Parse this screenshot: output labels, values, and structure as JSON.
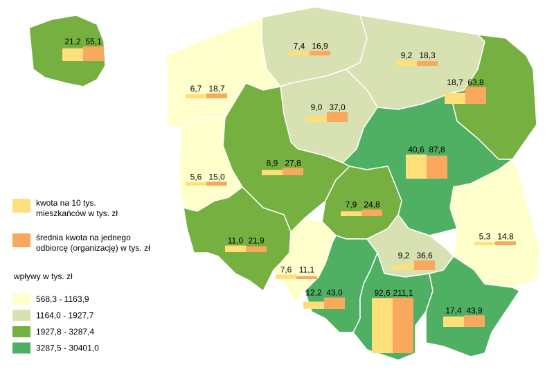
{
  "inset": {
    "values": [
      21.2,
      55.1
    ],
    "value_labels": [
      "21,2",
      "55,1"
    ],
    "color": "#76b041"
  },
  "regions": [
    {
      "values": [
        7.4,
        16.9
      ],
      "value_labels": [
        "7,4",
        "16,9"
      ],
      "color": "#d7e1b1"
    },
    {
      "values": [
        9.2,
        18.3
      ],
      "value_labels": [
        "9,2",
        "18,3"
      ],
      "color": "#d7e1b1"
    },
    {
      "values": [
        18.7,
        63.8
      ],
      "value_labels": [
        "18,7",
        "63,8"
      ],
      "color": "#76b041"
    },
    {
      "values": [
        6.7,
        18.7
      ],
      "value_labels": [
        "6,7",
        "18,7"
      ],
      "color": "#ffffcc"
    },
    {
      "values": [
        9.0,
        37.0
      ],
      "value_labels": [
        "9,0",
        "37,0"
      ],
      "color": "#d7e1b1"
    },
    {
      "values": [
        5.6,
        15.0
      ],
      "value_labels": [
        "5,6",
        "15,0"
      ],
      "color": "#ffffcc"
    },
    {
      "values": [
        8.9,
        27.8
      ],
      "value_labels": [
        "8,9",
        "27,8"
      ],
      "color": "#76b041"
    },
    {
      "values": [
        40.6,
        87.8
      ],
      "value_labels": [
        "40,6",
        "87,8"
      ],
      "color": "#4fb064"
    },
    {
      "values": [
        7.9,
        24.8
      ],
      "value_labels": [
        "7,9",
        "24,8"
      ],
      "color": "#76b041"
    },
    {
      "values": [
        11.0,
        21.9
      ],
      "value_labels": [
        "11,0",
        "21,9"
      ],
      "color": "#76b041"
    },
    {
      "values": [
        7.6,
        11.1
      ],
      "value_labels": [
        "7,6",
        "11,1"
      ],
      "color": "#ffffcc"
    },
    {
      "values": [
        12.2,
        43.0
      ],
      "value_labels": [
        "12,2",
        "43,0"
      ],
      "color": "#4fb064"
    },
    {
      "values": [
        9.2,
        36.6
      ],
      "value_labels": [
        "9,2",
        "36,6"
      ],
      "color": "#d7e1b1"
    },
    {
      "values": [
        5.3,
        14.8
      ],
      "value_labels": [
        "5,3",
        "14,8"
      ],
      "color": "#ffffcc"
    },
    {
      "values": [
        92.6,
        211.1
      ],
      "value_labels": [
        "92,6",
        "211,1"
      ],
      "color": "#4fb064"
    },
    {
      "values": [
        17.4,
        43.9
      ],
      "value_labels": [
        "17,4",
        "43,9"
      ],
      "color": "#4fb064"
    }
  ],
  "legend": {
    "series": [
      {
        "lines": [
          "kwota na 10 tys.",
          "mieszkańców w  tys. zł"
        ],
        "color": "#ffdf7a"
      },
      {
        "lines": [
          "średnia kwota na jednego",
          "odbiorcę (organizację) w tys. zł"
        ],
        "color": "#f9a85e"
      }
    ],
    "title": "wpływy w tys. zł",
    "classes": [
      {
        "label": "568,3 - 1163,9",
        "color": "#ffffcc"
      },
      {
        "label": "1164,0 - 1927,7",
        "color": "#d7e1b1"
      },
      {
        "label": "1927,8 - 3287,4",
        "color": "#76b041"
      },
      {
        "label": "3287,5 - 30401,0",
        "color": "#4fb064"
      }
    ]
  }
}
